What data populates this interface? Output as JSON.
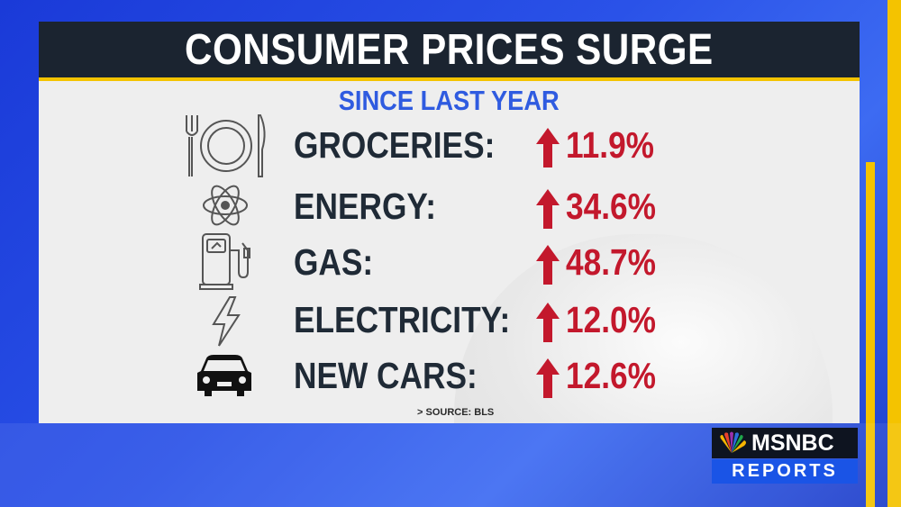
{
  "title": "CONSUMER PRICES SURGE",
  "subtitle": "SINCE LAST YEAR",
  "items": [
    {
      "label": "GROCERIES:",
      "value": "11.9%",
      "icon": "plate-fork-knife-icon"
    },
    {
      "label": "ENERGY:",
      "value": "34.6%",
      "icon": "atom-icon"
    },
    {
      "label": "GAS:",
      "value": "48.7%",
      "icon": "gas-pump-icon"
    },
    {
      "label": "ELECTRICITY:",
      "value": "12.0%",
      "icon": "lightning-bolt-icon"
    },
    {
      "label": "NEW CARS:",
      "value": "12.6%",
      "icon": "car-icon"
    }
  ],
  "source": "> SOURCE: BLS",
  "logo": {
    "brand": "MSNBC",
    "tagline": "REPORTS"
  },
  "colors": {
    "accent": "#f4c300",
    "value_red": "#c3182c",
    "subtitle_blue": "#2f5be0",
    "title_bg": "#1b2430"
  }
}
